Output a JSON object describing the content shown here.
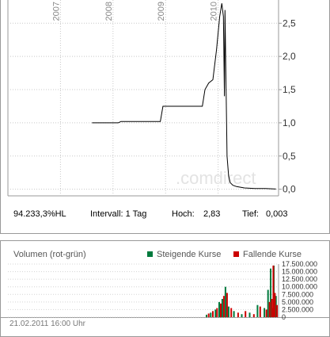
{
  "price_panel": {
    "watermark": ".comdirect",
    "stats": {
      "identifier": "94.233,3%HL",
      "interval": "Intervall: 1 Tag",
      "high_label": "Hoch:",
      "high_value": "2,83",
      "low_label": "Tief:",
      "low_value": "0,003"
    }
  },
  "volume_panel": {
    "title": "Volumen (rot-grün)",
    "legend": [
      {
        "label": "Steigende Kurse",
        "color": "#007a3d"
      },
      {
        "label": "Fallende Kurse",
        "color": "#cc0000"
      }
    ],
    "date": "21.02.2011 16:00 Uhr"
  },
  "chart_data": [
    {
      "type": "line",
      "x_tick_labels": [
        "2007",
        "2008",
        "2009",
        "2010"
      ],
      "y_tick_labels": [
        "0,0",
        "0,5",
        "1,0",
        "1,5",
        "2,0",
        "2,5"
      ],
      "y_ticks": [
        0,
        0.5,
        1.0,
        1.5,
        2.0,
        2.5
      ],
      "ylim": [
        -0.1,
        2.85
      ],
      "xlim": [
        2006.0,
        2011.15
      ],
      "grid": true,
      "line_color": "#000000",
      "series": [
        {
          "x": [
            2007.6,
            2008.1,
            2008.15,
            2008.9,
            2008.95,
            2009.7,
            2009.75,
            2009.82,
            2009.9,
            2009.97,
            2010.03,
            2010.07,
            2010.1,
            2010.12,
            2010.13,
            2010.15,
            2010.17,
            2010.2,
            2010.23,
            2010.28,
            2010.35,
            2010.5,
            2010.7,
            2010.9,
            2011.1
          ],
          "y": [
            1.0,
            1.0,
            1.02,
            1.02,
            1.25,
            1.25,
            1.5,
            1.6,
            1.65,
            2.1,
            2.6,
            2.8,
            2.6,
            1.4,
            2.7,
            1.6,
            0.5,
            0.2,
            0.1,
            0.06,
            0.04,
            0.02,
            0.01,
            0.01,
            0.003
          ]
        }
      ]
    },
    {
      "type": "bar",
      "y_tick_labels": [
        "17.500.000",
        "15.000.000",
        "12.500.000",
        "10.000.000",
        "7.500.000",
        "5.000.000",
        "2.500.000",
        "0"
      ],
      "y_ticks": [
        17500000,
        15000000,
        12500000,
        10000000,
        7500000,
        5000000,
        2500000,
        0
      ],
      "ylim": [
        0,
        17500000
      ],
      "xlim": [
        2006.0,
        2011.15
      ],
      "grid": true,
      "series": [
        {
          "name": "Steigende Kurse",
          "color": "#007a3d",
          "x": [
            2009.78,
            2009.86,
            2009.95,
            2010.02,
            2010.08,
            2010.14,
            2010.2,
            2010.3,
            2010.45,
            2010.6,
            2010.75,
            2010.88,
            2010.95,
            2011.0,
            2011.03,
            2011.06,
            2011.1
          ],
          "values": [
            800000,
            1500000,
            2500000,
            5000000,
            6000000,
            10000000,
            3500000,
            2000000,
            1000000,
            1500000,
            4000000,
            3000000,
            9000000,
            16000000,
            3000000,
            17000000,
            7000000
          ]
        },
        {
          "name": "Fallende Kurse",
          "color": "#cc0000",
          "x": [
            2009.82,
            2009.9,
            2009.98,
            2010.05,
            2010.11,
            2010.17,
            2010.25,
            2010.38,
            2010.52,
            2010.68,
            2010.8,
            2010.92,
            2010.98,
            2011.02,
            2011.05,
            2011.08,
            2011.12
          ],
          "values": [
            1200000,
            2000000,
            3000000,
            4500000,
            7000000,
            8000000,
            3000000,
            1500000,
            2000000,
            1000000,
            3500000,
            2500000,
            5000000,
            6000000,
            17000000,
            8000000,
            4000000
          ]
        }
      ]
    }
  ]
}
